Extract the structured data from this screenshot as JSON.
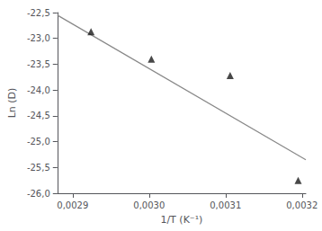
{
  "chart_data": {
    "type": "scatter",
    "xlabel": "1/T (K⁻¹)",
    "ylabel": "Ln (D)",
    "series": [
      {
        "type": "line",
        "color": "#888888",
        "x": [
          0.00288,
          0.003205
        ],
        "values": [
          -22.55,
          -25.349875
        ]
      },
      {
        "type": "scatter",
        "color": "#1a1a1a",
        "marker": "triangle",
        "x": [
          0.002924,
          0.003003,
          0.003106,
          0.003195
        ],
        "values": [
          -22.87,
          -23.4,
          -23.72,
          -25.75
        ]
      }
    ],
    "xlim": [
      0.00288,
      0.003205
    ],
    "ylim": [
      -26.0,
      -22.5
    ],
    "xticks": [
      {
        "value": 0.0029,
        "label": "0,0029"
      },
      {
        "value": 0.003,
        "label": "0,0030"
      },
      {
        "value": 0.0031,
        "label": "0,0031"
      },
      {
        "value": 0.0032,
        "label": "0,0032"
      }
    ],
    "yticks": [
      {
        "value": -26.0,
        "label": "-26,0"
      },
      {
        "value": -25.5,
        "label": "-25,5"
      },
      {
        "value": -25.0,
        "label": "-25,0"
      },
      {
        "value": -24.5,
        "label": "-24,5"
      },
      {
        "value": -24.0,
        "label": "-24,0"
      },
      {
        "value": -23.5,
        "label": "-23,5"
      },
      {
        "value": -23.0,
        "label": "-23,0"
      },
      {
        "value": -22.5,
        "label": "-22,5"
      }
    ],
    "grid": false
  }
}
